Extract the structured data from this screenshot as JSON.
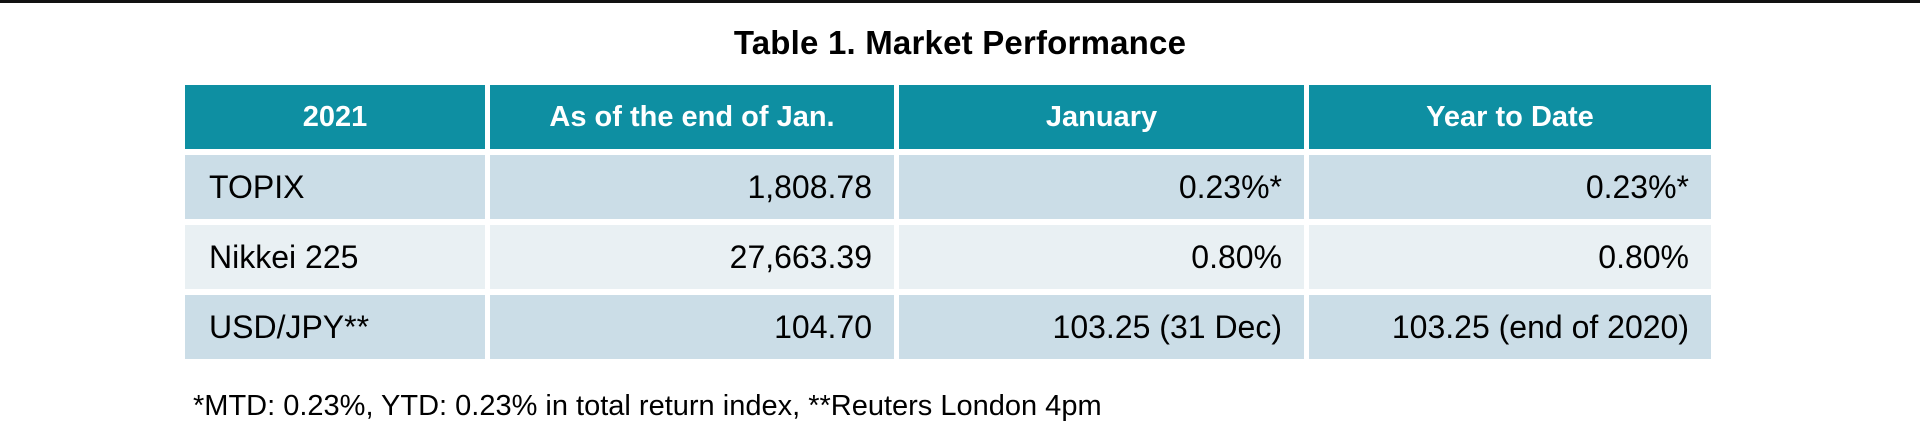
{
  "page": {
    "title": "Table 1. Market Performance",
    "footnote": "*MTD: 0.23%, YTD: 0.23% in total return index, **Reuters London 4pm"
  },
  "colors": {
    "header_bg": "#0E8FA2",
    "header_text": "#FFFFFF",
    "row_odd_bg": "#CBDDE7",
    "row_even_bg": "#E9F0F3",
    "body_text": "#000000",
    "top_rule": "#111111"
  },
  "table": {
    "columns": [
      "2021",
      "As of the end of Jan.",
      "January",
      "Year to Date"
    ],
    "rows": [
      [
        "TOPIX",
        "1,808.78",
        "0.23%*",
        "0.23%*"
      ],
      [
        "Nikkei 225",
        "27,663.39",
        "0.80%",
        "0.80%"
      ],
      [
        "USD/JPY**",
        "104.70",
        "103.25 (31 Dec)",
        "103.25 (end of 2020)"
      ]
    ]
  },
  "chart_data": {
    "type": "table",
    "title": "Table 1. Market Performance",
    "columns": [
      "2021",
      "As of the end of Jan.",
      "January",
      "Year to Date"
    ],
    "rows": [
      [
        "TOPIX",
        "1,808.78",
        "0.23%*",
        "0.23%*"
      ],
      [
        "Nikkei 225",
        "27,663.39",
        "0.80%",
        "0.80%"
      ],
      [
        "USD/JPY**",
        "104.70",
        "103.25 (31 Dec)",
        "103.25 (end of 2020)"
      ]
    ],
    "footnote": "*MTD: 0.23%, YTD: 0.23% in total return index, **Reuters London 4pm"
  }
}
